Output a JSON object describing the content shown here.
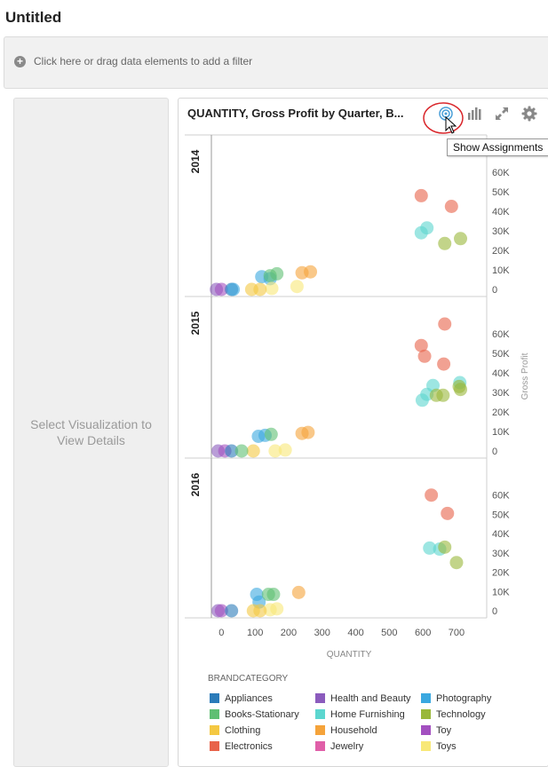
{
  "page": {
    "title": "Untitled"
  },
  "filter_bar": {
    "icon": "plus-circle-icon",
    "text": "Click here or drag data elements to add a filter"
  },
  "left_panel": {
    "text": "Select Visualization to View Details"
  },
  "viz": {
    "title": "QUANTITY, Gross Profit by Quarter, B...",
    "toolbar": {
      "assignments_icon": "assignments-icon",
      "chart_icon": "bar-chart-icon",
      "expand_icon": "expand-icon",
      "settings_icon": "gear-icon"
    },
    "tooltip": "Show Assignments"
  },
  "legend": {
    "title": "BRANDCATEGORY",
    "items": [
      {
        "label": "Appliances",
        "color": "#2b7bb9"
      },
      {
        "label": "Books-Stationary",
        "color": "#5fbf73"
      },
      {
        "label": "Clothing",
        "color": "#f4c842"
      },
      {
        "label": "Electronics",
        "color": "#e8634a"
      },
      {
        "label": "Health and Beauty",
        "color": "#8b5bbd"
      },
      {
        "label": "Home Furnishing",
        "color": "#5cd6cf"
      },
      {
        "label": "Household",
        "color": "#f5a33a"
      },
      {
        "label": "Jewelry",
        "color": "#e05fa8"
      },
      {
        "label": "Photography",
        "color": "#3aa8e0"
      },
      {
        "label": "Technology",
        "color": "#9ab83a"
      },
      {
        "label": "Toy",
        "color": "#a350c0"
      },
      {
        "label": "Toys",
        "color": "#f8e878"
      }
    ]
  },
  "chart_data": {
    "type": "scatter",
    "title": "QUANTITY, Gross Profit by Quarter, B...",
    "xlabel": "QUANTITY",
    "ylabel": "Gross Profit",
    "xlim": [
      -30,
      790
    ],
    "ylim": [
      0,
      70000
    ],
    "x_ticks": [
      "0",
      "100",
      "200",
      "300",
      "400",
      "500",
      "600",
      "700"
    ],
    "x_tick_values": [
      0,
      100,
      200,
      300,
      400,
      500,
      600,
      700
    ],
    "y_ticks": [
      "0",
      "10K",
      "20K",
      "30K",
      "40K",
      "50K",
      "60K"
    ],
    "y_tick_values": [
      0,
      10000,
      20000,
      30000,
      40000,
      50000,
      60000
    ],
    "grid": false,
    "legend_position": "bottom",
    "facet_by": "Year",
    "panels": [
      {
        "label": "2014",
        "points": [
          {
            "category": "Electronics",
            "x": 595,
            "y": 48000
          },
          {
            "category": "Electronics",
            "x": 685,
            "y": 42500
          },
          {
            "category": "Home Furnishing",
            "x": 595,
            "y": 29000
          },
          {
            "category": "Home Furnishing",
            "x": 612,
            "y": 31500
          },
          {
            "category": "Technology",
            "x": 665,
            "y": 23500
          },
          {
            "category": "Technology",
            "x": 712,
            "y": 26000
          },
          {
            "category": "Photography",
            "x": 120,
            "y": 6500
          },
          {
            "category": "Photography",
            "x": 145,
            "y": 5500
          },
          {
            "category": "Books-Stationary",
            "x": 145,
            "y": 7000
          },
          {
            "category": "Books-Stationary",
            "x": 165,
            "y": 8000
          },
          {
            "category": "Household",
            "x": 240,
            "y": 8500
          },
          {
            "category": "Household",
            "x": 265,
            "y": 9000
          },
          {
            "category": "Toys",
            "x": 225,
            "y": 1500
          },
          {
            "category": "Toys",
            "x": 150,
            "y": 500
          },
          {
            "category": "Clothing",
            "x": 90,
            "y": 0
          },
          {
            "category": "Clothing",
            "x": 115,
            "y": 0
          },
          {
            "category": "Health and Beauty",
            "x": -15,
            "y": 0
          },
          {
            "category": "Toy",
            "x": 0,
            "y": 0
          },
          {
            "category": "Appliances",
            "x": 30,
            "y": 0
          },
          {
            "category": "Photography",
            "x": 35,
            "y": 0
          }
        ]
      },
      {
        "label": "2015",
        "points": [
          {
            "category": "Electronics",
            "x": 665,
            "y": 65000
          },
          {
            "category": "Electronics",
            "x": 595,
            "y": 54000
          },
          {
            "category": "Electronics",
            "x": 605,
            "y": 48500
          },
          {
            "category": "Electronics",
            "x": 662,
            "y": 44500
          },
          {
            "category": "Home Furnishing",
            "x": 598,
            "y": 26000
          },
          {
            "category": "Home Furnishing",
            "x": 612,
            "y": 29000
          },
          {
            "category": "Home Furnishing",
            "x": 630,
            "y": 33500
          },
          {
            "category": "Home Furnishing",
            "x": 710,
            "y": 35000
          },
          {
            "category": "Technology",
            "x": 640,
            "y": 28500
          },
          {
            "category": "Technology",
            "x": 660,
            "y": 28500
          },
          {
            "category": "Technology",
            "x": 708,
            "y": 33000
          },
          {
            "category": "Technology",
            "x": 712,
            "y": 31500
          },
          {
            "category": "Photography",
            "x": 110,
            "y": 7500
          },
          {
            "category": "Photography",
            "x": 130,
            "y": 8000
          },
          {
            "category": "Books-Stationary",
            "x": 148,
            "y": 8500
          },
          {
            "category": "Household",
            "x": 240,
            "y": 9000
          },
          {
            "category": "Household",
            "x": 258,
            "y": 9500
          },
          {
            "category": "Toys",
            "x": 190,
            "y": 500
          },
          {
            "category": "Toys",
            "x": 160,
            "y": 0
          },
          {
            "category": "Clothing",
            "x": 95,
            "y": 0
          },
          {
            "category": "Health and Beauty",
            "x": -10,
            "y": 0
          },
          {
            "category": "Toy",
            "x": 10,
            "y": 0
          },
          {
            "category": "Appliances",
            "x": 30,
            "y": 0
          },
          {
            "category": "Books-Stationary",
            "x": 60,
            "y": 0
          }
        ]
      },
      {
        "label": "2016",
        "points": [
          {
            "category": "Electronics",
            "x": 625,
            "y": 60000
          },
          {
            "category": "Electronics",
            "x": 673,
            "y": 50500
          },
          {
            "category": "Home Furnishing",
            "x": 620,
            "y": 32500
          },
          {
            "category": "Home Furnishing",
            "x": 650,
            "y": 32000
          },
          {
            "category": "Technology",
            "x": 665,
            "y": 33000
          },
          {
            "category": "Technology",
            "x": 700,
            "y": 25000
          },
          {
            "category": "Photography",
            "x": 105,
            "y": 8500
          },
          {
            "category": "Photography",
            "x": 112,
            "y": 4500
          },
          {
            "category": "Books-Stationary",
            "x": 140,
            "y": 8500
          },
          {
            "category": "Books-Stationary",
            "x": 155,
            "y": 8500
          },
          {
            "category": "Household",
            "x": 230,
            "y": 9500
          },
          {
            "category": "Toys",
            "x": 165,
            "y": 1000
          },
          {
            "category": "Toys",
            "x": 145,
            "y": 500
          },
          {
            "category": "Clothing",
            "x": 95,
            "y": 0
          },
          {
            "category": "Clothing",
            "x": 115,
            "y": 0
          },
          {
            "category": "Health and Beauty",
            "x": -10,
            "y": 0
          },
          {
            "category": "Toy",
            "x": 0,
            "y": 0
          },
          {
            "category": "Appliances",
            "x": 30,
            "y": 0
          }
        ]
      }
    ]
  }
}
